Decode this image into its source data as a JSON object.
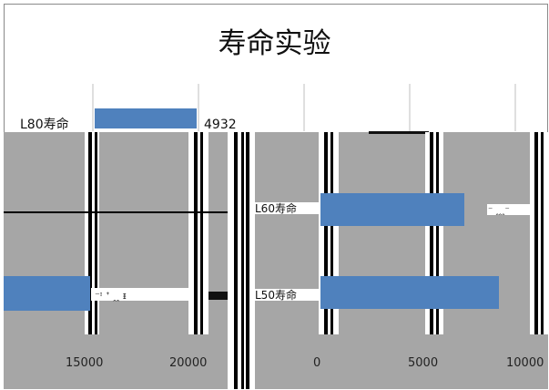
{
  "chart_data": {
    "type": "bar",
    "orientation": "horizontal",
    "title": "寿命实验",
    "categories": [
      "L80寿命",
      "L60寿命",
      "L50寿命"
    ],
    "values": [
      4932,
      6804,
      8432
    ],
    "data_labels": [
      "4932",
      "",
      ""
    ],
    "xlabel": "",
    "ylabel": "",
    "x_ticks_left": [
      "15000",
      "20000"
    ],
    "x_ticks_right": [
      "0",
      "5000",
      "10000"
    ],
    "xlim": [
      0,
      10000
    ],
    "grid": true,
    "legend": "none",
    "colors": {
      "bar": "#4f81bd",
      "background": "#ffffff",
      "artifact_gray": "#a6a6a6",
      "gridline": "#bfbfbf"
    }
  }
}
